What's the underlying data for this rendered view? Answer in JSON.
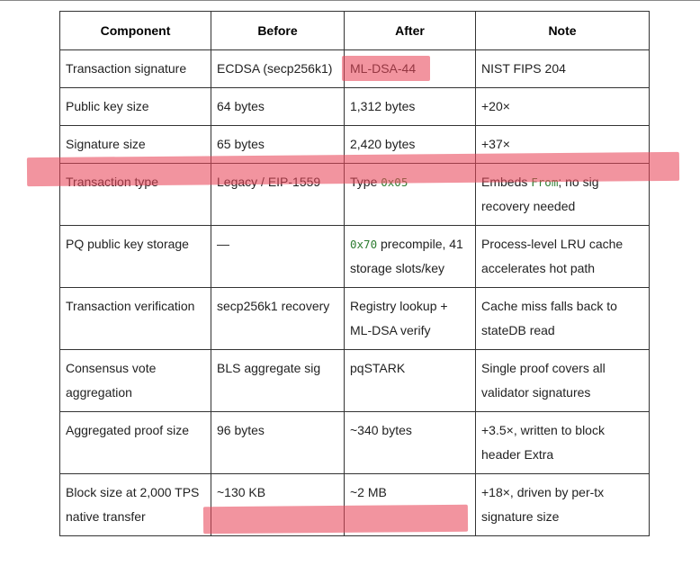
{
  "table": {
    "headers": [
      "Component",
      "Before",
      "After",
      "Note"
    ],
    "rows": [
      {
        "component": "Transaction signature",
        "before": "ECDSA (secp256k1)",
        "after": "ML-DSA-44",
        "note": "NIST FIPS 204"
      },
      {
        "component": "Public key size",
        "before": "64 bytes",
        "after": "1,312 bytes",
        "note": "+20×"
      },
      {
        "component": "Signature size",
        "before": "65 bytes",
        "after": "2,420 bytes",
        "note": "+37×"
      },
      {
        "component": "Transaction type",
        "before": "Legacy / EIP-1559",
        "after_text": "Type ",
        "after_code": "0x05",
        "note_pre": "Embeds ",
        "note_code": "From",
        "note_post": "; no sig recovery needed"
      },
      {
        "component": "PQ public key storage",
        "before": "—",
        "after_code": "0x70",
        "after_text": " precompile, 41 storage slots/key",
        "note": "Process-level LRU cache accelerates hot path"
      },
      {
        "component": "Transaction verification",
        "before": "secp256k1 recovery",
        "after": "Registry lookup + ML-DSA verify",
        "note": "Cache miss falls back to stateDB read"
      },
      {
        "component": "Consensus vote aggregation",
        "before": "BLS aggregate sig",
        "after": "pqSTARK",
        "note": "Single proof covers all validator signatures"
      },
      {
        "component": "Aggregated proof size",
        "before": "96 bytes",
        "after": "~340 bytes",
        "note": "+3.5×, written to block header Extra"
      },
      {
        "component": "Block size at 2,000 TPS native transfer",
        "before": "~130 KB",
        "after": "~2 MB",
        "note": "+18×, driven by per-tx signature size"
      }
    ]
  },
  "colors": {
    "highlight": "#e8465a",
    "code": "#2e7d32",
    "border": "#333333"
  }
}
